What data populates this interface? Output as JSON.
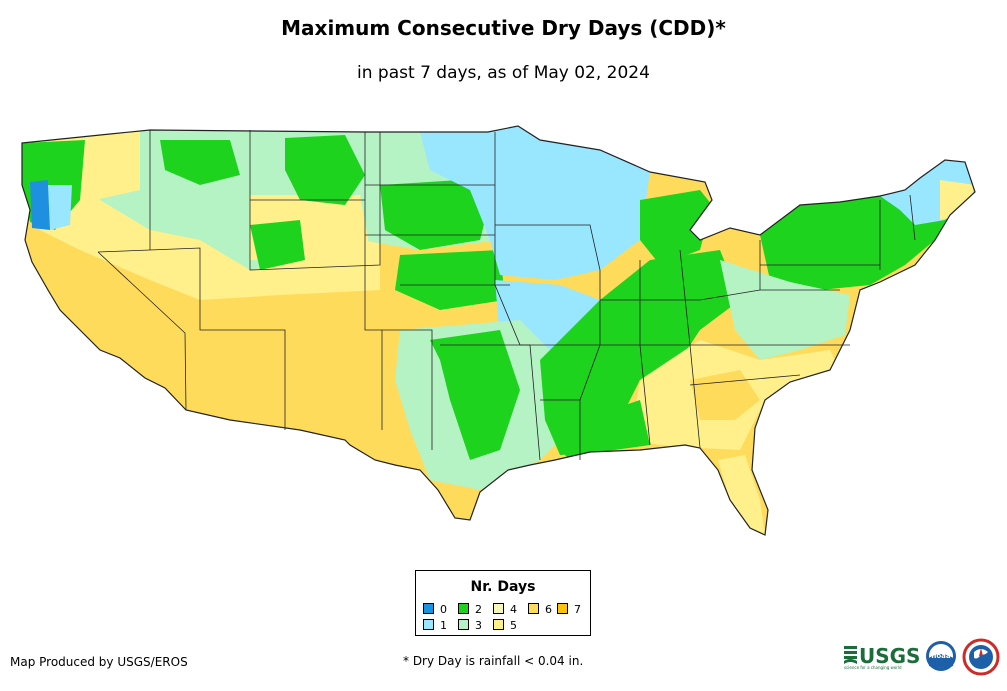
{
  "title": "Maximum Consecutive Dry Days (CDD)*",
  "subtitle": "in past 7 days, as of May 02, 2024",
  "legend": {
    "title": "Nr. Days",
    "items": [
      {
        "label": "0",
        "color": "#1f8fe0"
      },
      {
        "label": "1",
        "color": "#99e6ff"
      },
      {
        "label": "2",
        "color": "#1ed31e"
      },
      {
        "label": "3",
        "color": "#b5f2c4"
      },
      {
        "label": "4",
        "color": "#f7f7b8"
      },
      {
        "label": "5",
        "color": "#fff08c"
      },
      {
        "label": "6",
        "color": "#ffdb5c"
      },
      {
        "label": "7",
        "color": "#ffc20a"
      }
    ]
  },
  "credit": "Map Produced by USGS/EROS",
  "footnote": "* Dry Day is rainfall < 0.04 in.",
  "logos": {
    "usgs": {
      "text": "USGS",
      "tagline": "science for a changing world",
      "color": "#1a6e3a"
    },
    "noaa": {
      "text": "noaa",
      "color": "#1d5fa8"
    },
    "nws": {
      "color": "#cf2a2a"
    }
  }
}
